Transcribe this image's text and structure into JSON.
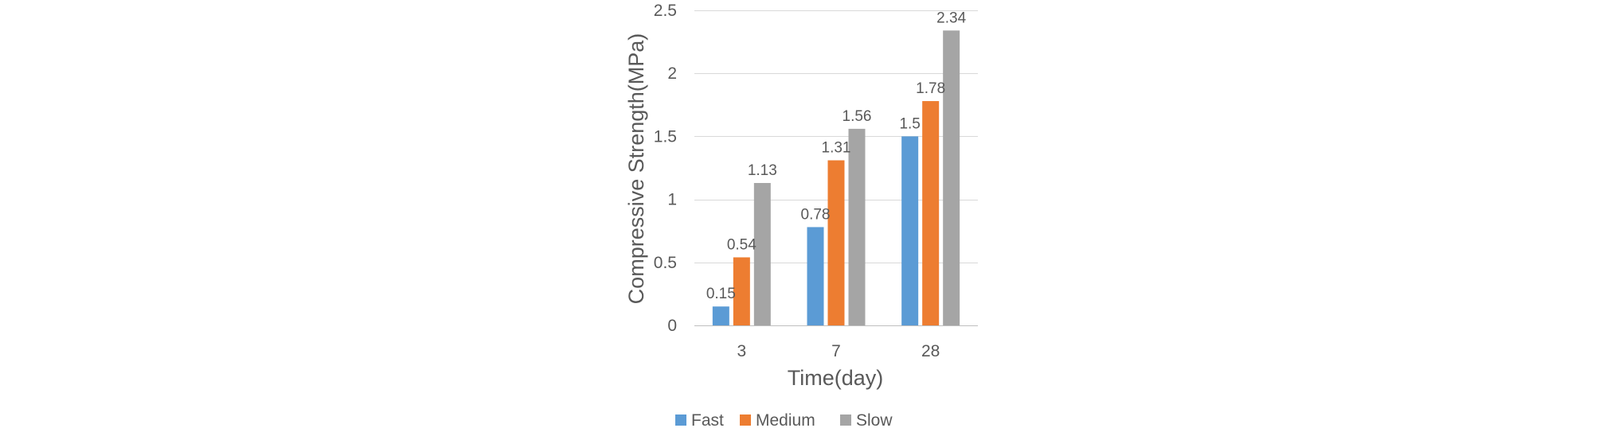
{
  "chart_data": {
    "type": "bar",
    "title": "",
    "xlabel": "Time(day)",
    "ylabel": "Compressive Strength(MPa)",
    "categories": [
      "3",
      "7",
      "28"
    ],
    "series": [
      {
        "name": "Fast",
        "color": "#5B9BD5",
        "values": [
          0.15,
          0.78,
          1.5
        ]
      },
      {
        "name": "Medium",
        "color": "#ED7D31",
        "values": [
          0.54,
          1.31,
          1.78
        ]
      },
      {
        "name": "Slow",
        "color": "#A5A5A5",
        "values": [
          1.13,
          1.56,
          2.34
        ]
      }
    ],
    "data_labels": [
      [
        "0.15",
        "0.78",
        "1.5"
      ],
      [
        "0.54",
        "1.31",
        "1.78"
      ],
      [
        "1.13",
        "1.56",
        "2.34"
      ]
    ],
    "ylim": [
      0,
      2.5
    ],
    "yticks": [
      0,
      0.5,
      1,
      1.5,
      2,
      2.5
    ],
    "ytick_labels": [
      "0",
      "0.5",
      "1",
      "1.5",
      "2",
      "2.5"
    ],
    "grid": true,
    "gridline_color": "#D9D9D9",
    "legend_position": "bottom"
  }
}
